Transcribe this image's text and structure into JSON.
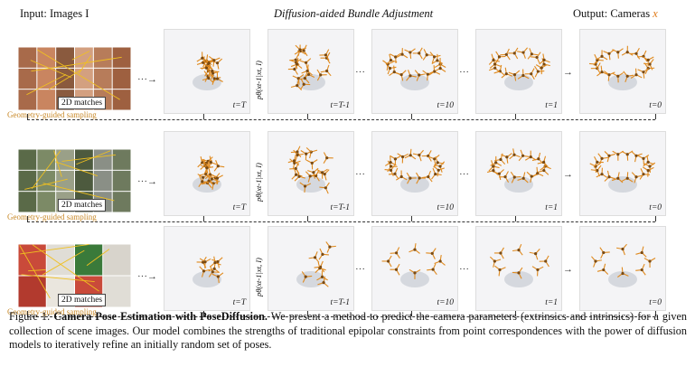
{
  "header": {
    "input_prefix": "Input: Images ",
    "input_symbol": "I",
    "middle": "Diffusion-aided Bundle Adjustment",
    "output_prefix": "Output: Cameras ",
    "output_symbol": "x"
  },
  "rows": [
    {
      "matches_label": "2D matches",
      "sampling_label": "Geometry-guided sampling",
      "t_labels": [
        "t=T",
        "t=T-1",
        "t=10",
        "t=1",
        "t=0"
      ],
      "prob_label": "pθ(xt-1|xt, I)"
    },
    {
      "matches_label": "2D matches",
      "sampling_label": "Geometry-guided sampling",
      "t_labels": [
        "t=T",
        "t=T-1",
        "t=10",
        "t=1",
        "t=0"
      ],
      "prob_label": "pθ(xt-1|xt, I)"
    },
    {
      "matches_label": "2D matches",
      "sampling_label": "Geometry-guided sampling",
      "t_labels": [
        "t=T",
        "t=T-1",
        "t=10",
        "t=1",
        "t=0"
      ],
      "prob_label": "pθ(xt-1|xt, I)"
    }
  ],
  "ellipsis": "···",
  "caption": {
    "fig": "Figure 1: ",
    "title": "Camera Pose Estimation with PoseDiffusion.",
    "body": " We present a method to predict the camera parameters (extrinsics and intrinsics) for a given collection of scene images. Our model combines the strengths of traditional epipolar constraints from point correspondences with the power of diffusion models to iteratively refine an initially random set of poses."
  },
  "colors": {
    "camera": "#e08a1e",
    "sampling": "#c98a2a",
    "background": "#f4f4f6"
  }
}
